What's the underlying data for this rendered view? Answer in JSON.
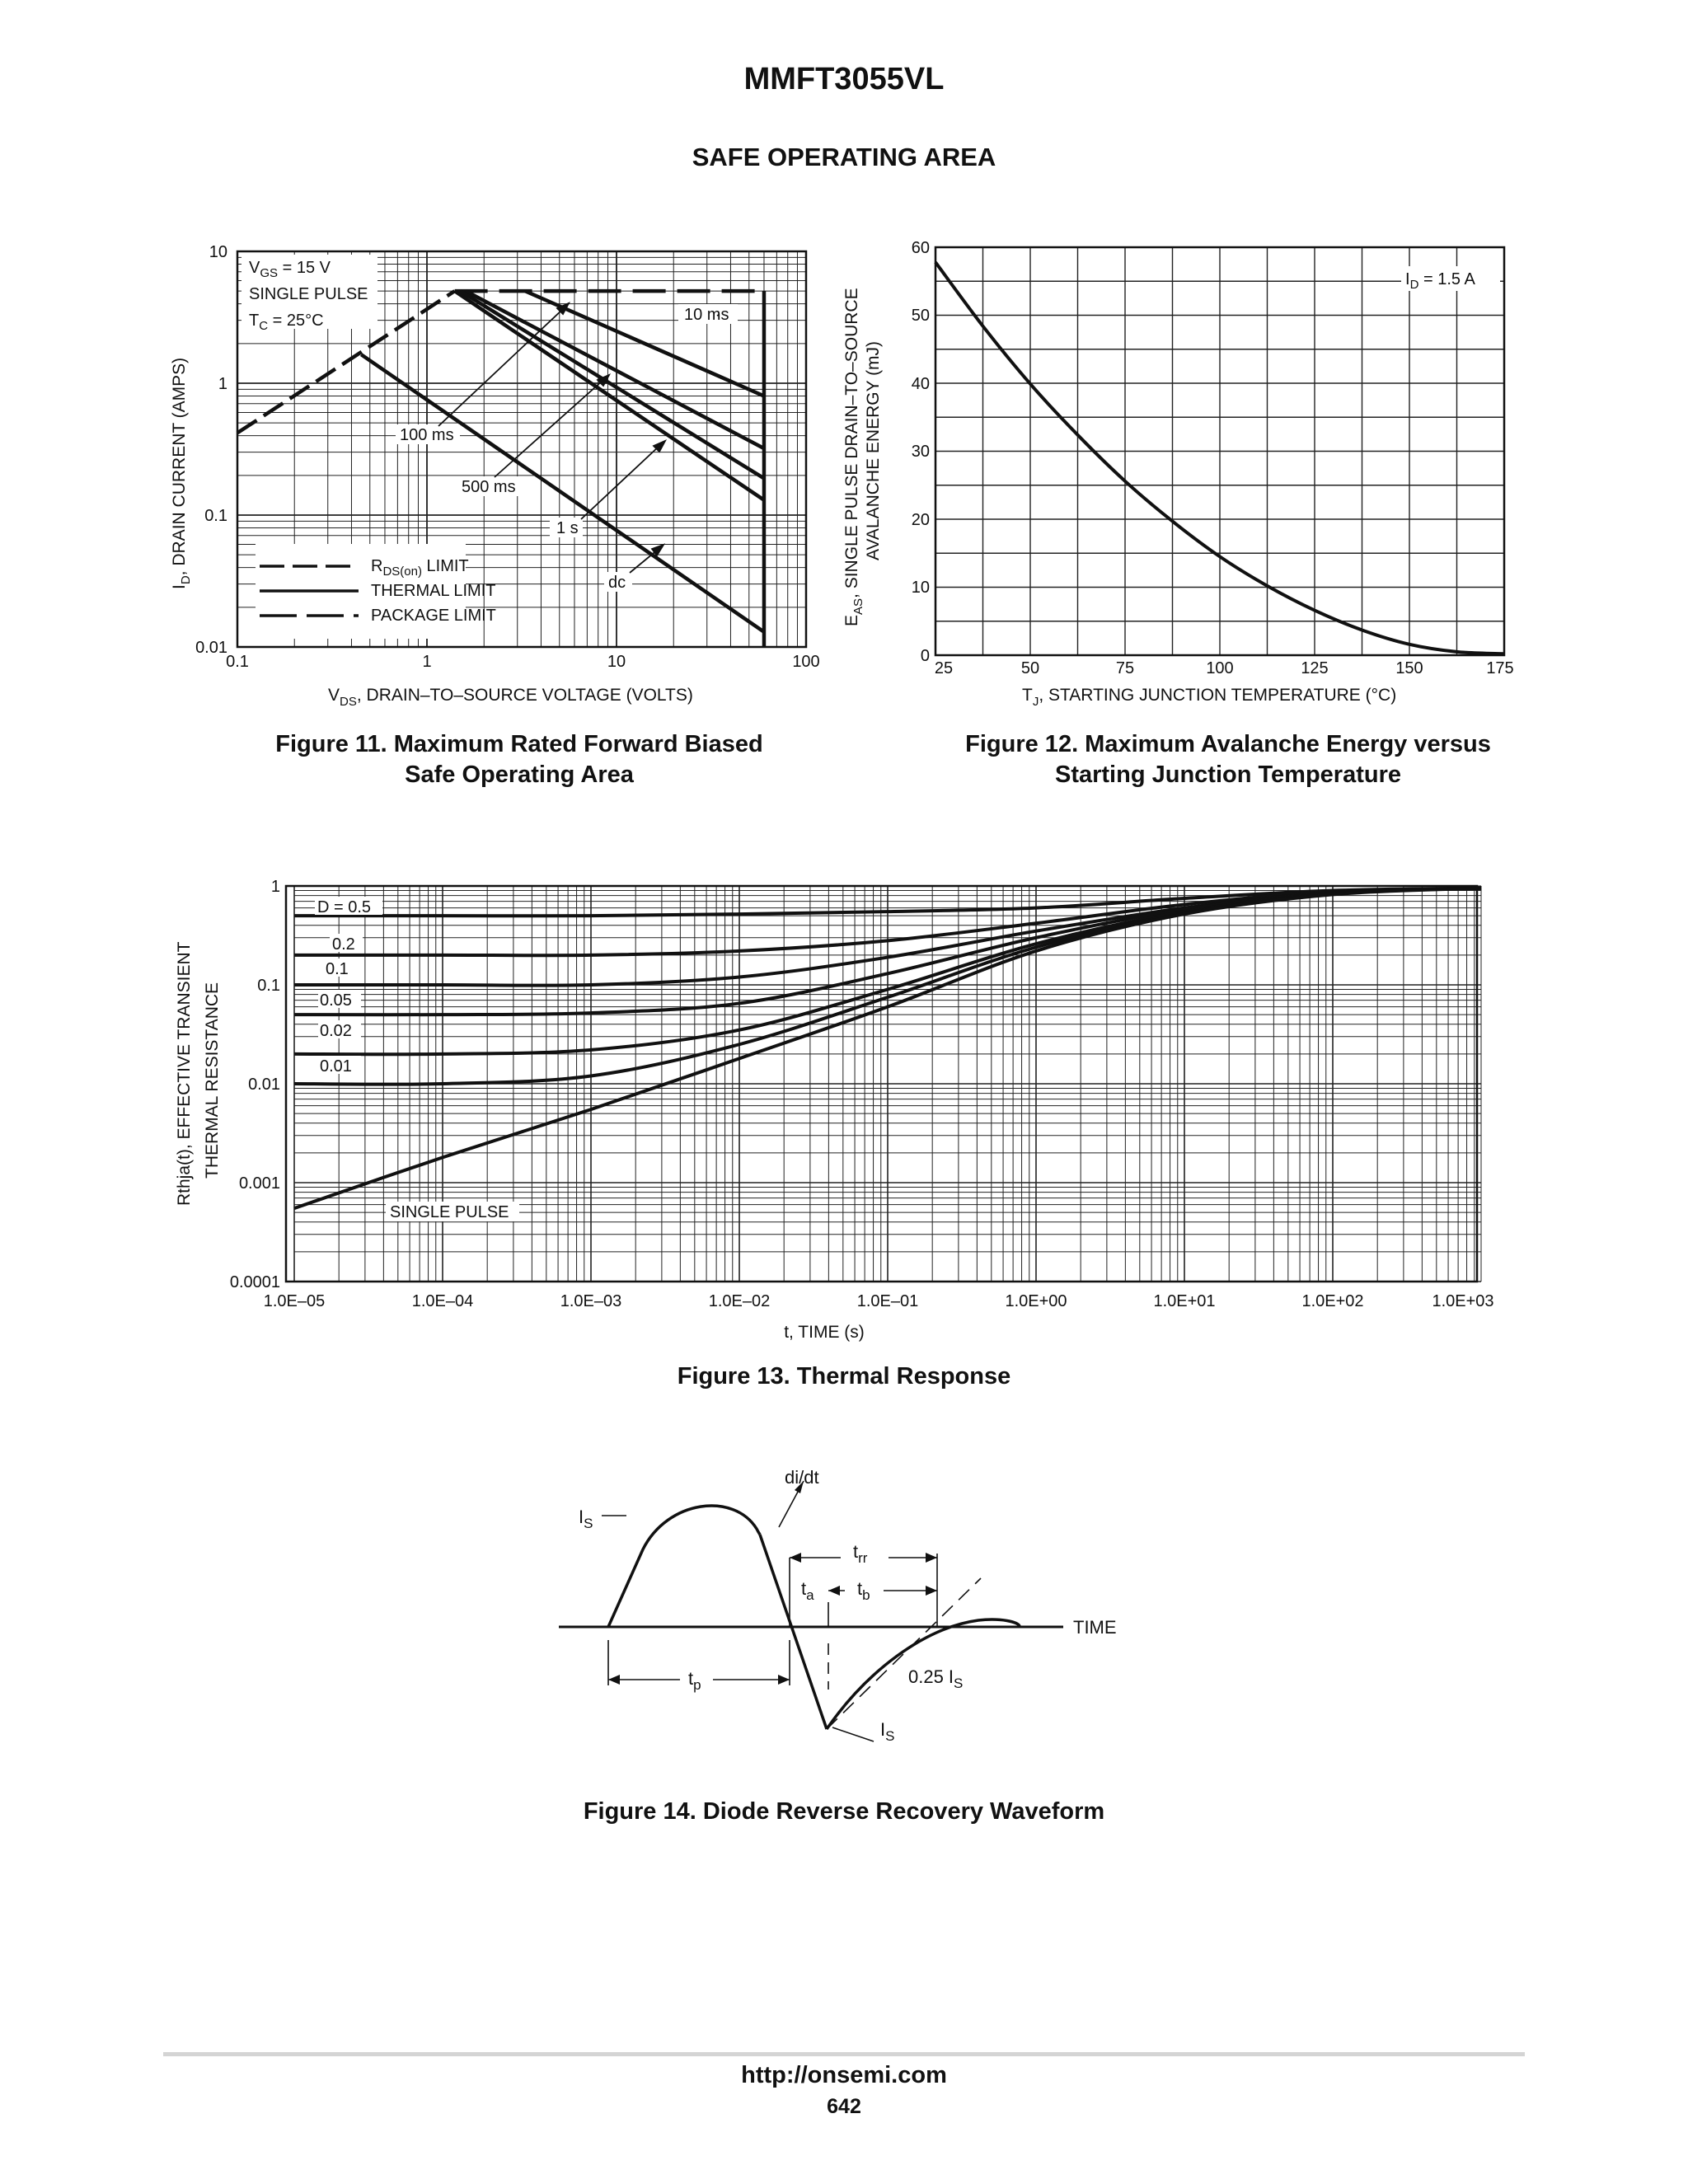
{
  "document": {
    "part_number": "MMFT3055VL",
    "section_title": "SAFE OPERATING AREA",
    "footer_url": "http://onsemi.com",
    "page_number": "642"
  },
  "figures": [
    {
      "id": "fig11",
      "caption_line1": "Figure 11. Maximum Rated Forward Biased",
      "caption_line2": "Safe Operating Area"
    },
    {
      "id": "fig12",
      "caption_line1": "Figure 12. Maximum Avalanche Energy versus",
      "caption_line2": "Starting Junction Temperature"
    },
    {
      "id": "fig13",
      "caption_line1": "Figure 13. Thermal Response"
    },
    {
      "id": "fig14",
      "caption_line1": "Figure 14. Diode Reverse Recovery Waveform"
    }
  ],
  "chart_data": [
    {
      "type": "line",
      "figure": "Figure 11",
      "x_scale": "log",
      "y_scale": "log",
      "xlim": [
        0.1,
        100
      ],
      "ylim": [
        0.01,
        10
      ],
      "x_ticks": [
        "0.1",
        "1",
        "10",
        "100"
      ],
      "y_ticks": [
        "0.01",
        "0.1",
        "1",
        "10"
      ],
      "ylabel_sub": "D",
      "ylabel_main": ", DRAIN CURRENT (AMPS)",
      "xlabel_sym": "V",
      "xlabel_sub": "DS",
      "xlabel_main": ", DRAIN–TO–SOURCE VOLTAGE (VOLTS)",
      "conditions": {
        "vgs_sym": "V",
        "vgs_sub": "GS",
        "vgs_val": " = 15 V",
        "pulse": "SINGLE PULSE",
        "tc_sym": "T",
        "tc_sub": "C",
        "tc_val": " = 25°C"
      },
      "curve_labels": [
        "10 ms",
        "100 ms",
        "500 ms",
        "1 s",
        "dc"
      ],
      "legend": [
        {
          "style": "long-dash",
          "text_main": "R",
          "text_sub": "DS(on)",
          "text_rest": " LIMIT"
        },
        {
          "style": "solid",
          "text_main": "THERMAL LIMIT"
        },
        {
          "style": "dash",
          "text_main": "PACKAGE LIMIT"
        }
      ],
      "rds_limit": {
        "x": [
          0.1,
          1.4
        ],
        "y": [
          0.42,
          5.0
        ]
      },
      "package_limit": {
        "x": [
          1.4,
          60
        ],
        "y": [
          5.0,
          5.0
        ]
      },
      "voltage_limit_x": 60,
      "series": [
        {
          "name": "10 ms",
          "x": [
            3.3,
            60
          ],
          "y": [
            5.0,
            0.8
          ]
        },
        {
          "name": "100 ms",
          "x": [
            1.6,
            60
          ],
          "y": [
            5.0,
            0.32
          ]
        },
        {
          "name": "500 ms",
          "x": [
            1.5,
            60
          ],
          "y": [
            5.0,
            0.19
          ]
        },
        {
          "name": "1 s",
          "x": [
            1.4,
            60
          ],
          "y": [
            5.0,
            0.13
          ]
        },
        {
          "name": "dc",
          "x": [
            0.45,
            60
          ],
          "y": [
            1.65,
            0.013
          ]
        }
      ]
    },
    {
      "type": "line",
      "figure": "Figure 12",
      "xlim": [
        25,
        175
      ],
      "ylim": [
        0,
        60
      ],
      "x_ticks": [
        "25",
        "50",
        "75",
        "100",
        "125",
        "150",
        "175"
      ],
      "y_ticks": [
        "0",
        "10",
        "20",
        "30",
        "40",
        "50",
        "60"
      ],
      "ylabel_sym": "E",
      "ylabel_sub": "AS",
      "ylabel_main": ", SINGLE PULSE DRAIN–TO–SOURCE",
      "ylabel_line2": "AVALANCHE ENERGY (mJ)",
      "xlabel_sym": "T",
      "xlabel_sub": "J",
      "xlabel_main": ", STARTING JUNCTION TEMPERATURE (°C)",
      "annotation_sym": "I",
      "annotation_sub": "D",
      "annotation_val": " = 1.5 A",
      "x": [
        25,
        37.5,
        50,
        62.5,
        75,
        87.5,
        100,
        112.5,
        125,
        137.5,
        150,
        162.5,
        175
      ],
      "y": [
        57.8,
        48.4,
        39.9,
        32.4,
        25.6,
        19.7,
        14.5,
        10.2,
        6.6,
        3.7,
        1.6,
        0.5,
        0.2
      ]
    },
    {
      "type": "line",
      "figure": "Figure 13",
      "x_scale": "log",
      "y_scale": "log",
      "xlim": [
        1e-05,
        1000
      ],
      "ylim": [
        0.0001,
        1
      ],
      "x_ticks": [
        "1.0E–05",
        "1.0E–04",
        "1.0E–03",
        "1.0E–02",
        "1.0E–01",
        "1.0E+00",
        "1.0E+01",
        "1.0E+02",
        "1.0E+03"
      ],
      "y_ticks": [
        "0.0001",
        "0.001",
        "0.01",
        "0.1",
        "1"
      ],
      "xlabel": "t, TIME (s)",
      "ylabel_line1": "Rthja(t), EFFECTIVE TRANSIENT",
      "ylabel_line2": "THERMAL RESISTANCE",
      "x": [
        1e-05,
        0.0001,
        0.001,
        0.01,
        0.1,
        1,
        10,
        100,
        1000
      ],
      "series": [
        {
          "name": "D = 0.5",
          "y": [
            0.5,
            0.5,
            0.5,
            0.52,
            0.55,
            0.6,
            0.75,
            0.9,
            0.95
          ]
        },
        {
          "name": "0.2",
          "y": [
            0.2,
            0.2,
            0.2,
            0.22,
            0.28,
            0.42,
            0.65,
            0.88,
            0.95
          ]
        },
        {
          "name": "0.1",
          "y": [
            0.1,
            0.1,
            0.1,
            0.12,
            0.19,
            0.35,
            0.6,
            0.86,
            0.95
          ]
        },
        {
          "name": "0.05",
          "y": [
            0.05,
            0.05,
            0.052,
            0.065,
            0.13,
            0.3,
            0.58,
            0.85,
            0.95
          ]
        },
        {
          "name": "0.02",
          "y": [
            0.02,
            0.02,
            0.022,
            0.035,
            0.09,
            0.26,
            0.55,
            0.84,
            0.95
          ]
        },
        {
          "name": "0.01",
          "y": [
            0.01,
            0.01,
            0.012,
            0.025,
            0.075,
            0.24,
            0.53,
            0.83,
            0.95
          ]
        },
        {
          "name": "SINGLE PULSE",
          "y": [
            0.00055,
            0.0018,
            0.0055,
            0.018,
            0.06,
            0.22,
            0.52,
            0.82,
            0.95
          ]
        }
      ]
    }
  ],
  "diagram": {
    "axis_label": "TIME",
    "labels": {
      "is_top_main": "I",
      "is_top_sub": "S",
      "didt": "di/dt",
      "trr_main": "t",
      "trr_sub": "rr",
      "ta_main": "t",
      "ta_sub": "a",
      "tb_main": "t",
      "tb_sub": "b",
      "tp_main": "t",
      "tp_sub": "p",
      "quarter_main": "0.25 I",
      "quarter_sub": "S",
      "is_bot_main": "I",
      "is_bot_sub": "S"
    }
  }
}
